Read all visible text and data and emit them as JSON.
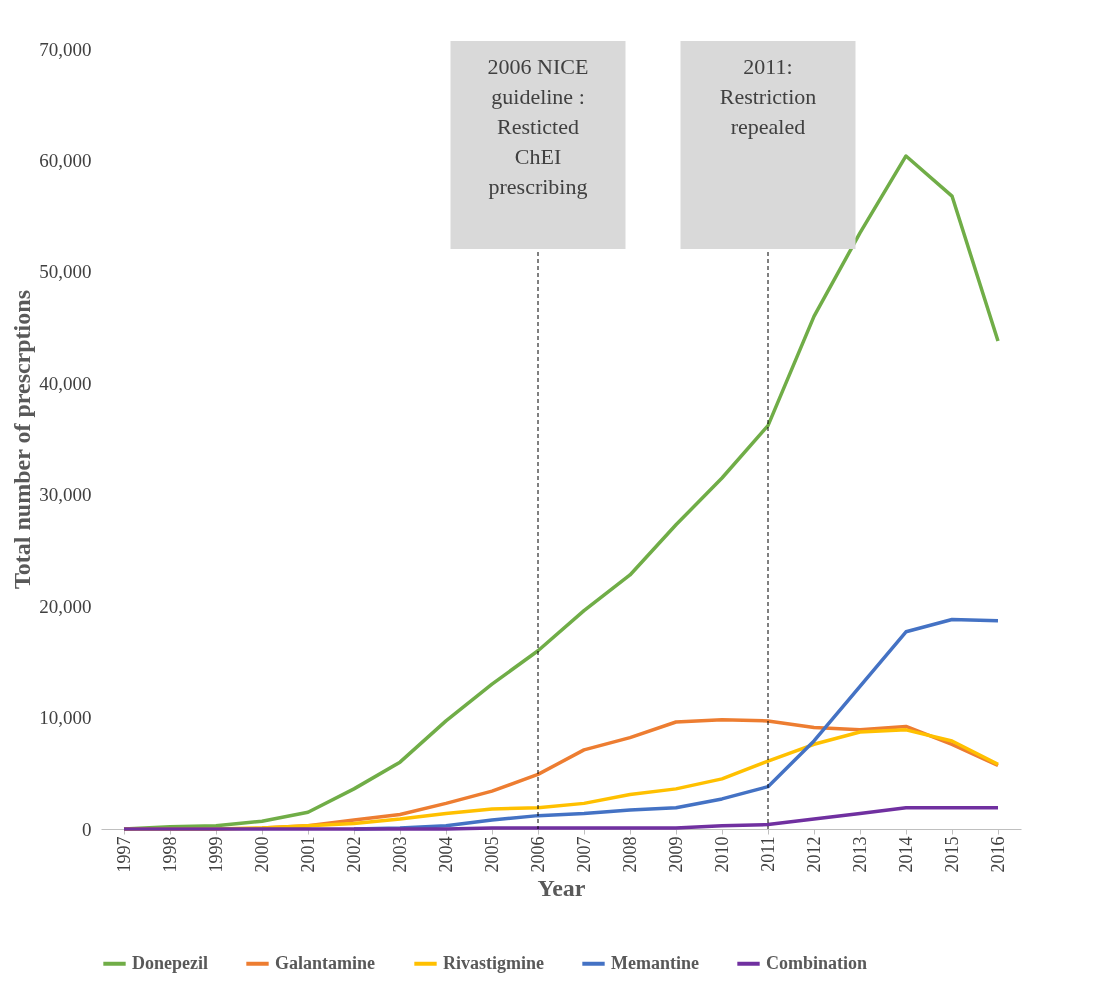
{
  "chart_data": {
    "type": "line",
    "xlabel": "Year",
    "ylabel": "Total number of prescrptions",
    "categories": [
      "1997",
      "1998",
      "1999",
      "2000",
      "2001",
      "2002",
      "2003",
      "2004",
      "2005",
      "2006",
      "2007",
      "2008",
      "2009",
      "2010",
      "2011",
      "2012",
      "2013",
      "2014",
      "2015",
      "2016"
    ],
    "series": [
      {
        "name": "Donepezil",
        "color": "#70ad47",
        "values": [
          0,
          200,
          300,
          700,
          1500,
          3600,
          6000,
          9700,
          13000,
          16000,
          19600,
          22800,
          27300,
          31500,
          36200,
          46000,
          53500,
          60400,
          56800,
          43800
        ]
      },
      {
        "name": "Galantamine",
        "color": "#ed7d31",
        "values": [
          null,
          null,
          null,
          100,
          300,
          800,
          1300,
          2300,
          3400,
          4900,
          7100,
          8200,
          9600,
          9800,
          9700,
          9100,
          8900,
          9200,
          7600,
          5700
        ]
      },
      {
        "name": "Rivastigmine",
        "color": "#ffc000",
        "values": [
          0,
          0,
          0,
          100,
          300,
          500,
          900,
          1400,
          1800,
          1900,
          2300,
          3100,
          3600,
          4500,
          6100,
          7600,
          8700,
          8900,
          7900,
          5800
        ]
      },
      {
        "name": "Memantine",
        "color": "#4472c4",
        "values": [
          null,
          null,
          null,
          null,
          null,
          0,
          100,
          300,
          800,
          1200,
          1400,
          1700,
          1900,
          2700,
          3800,
          7900,
          12800,
          17700,
          18800,
          18700
        ]
      },
      {
        "name": "Combination",
        "color": "#7030a0",
        "values": [
          0,
          0,
          0,
          0,
          0,
          0,
          0,
          0,
          100,
          100,
          100,
          100,
          100,
          300,
          400,
          900,
          1400,
          1900,
          1900,
          1900
        ]
      }
    ],
    "ylim": [
      0,
      70000
    ],
    "yticks": [
      0,
      {
        "value": 10000,
        "label": "10,000"
      },
      {
        "value": 20000,
        "label": "20,000"
      },
      {
        "value": 30000,
        "label": "30,000"
      },
      {
        "value": 40000,
        "label": "40,000"
      },
      {
        "value": 50000,
        "label": "50,000"
      },
      {
        "value": 60000,
        "label": "60,000"
      },
      {
        "value": 70000,
        "label": "70,000"
      }
    ],
    "grid": false,
    "legend": "bottom",
    "line_style": "solid",
    "ref_lines": [
      {
        "axis": "x",
        "value": "2006",
        "label": "2006 NICE\nguideline :\nResticted\nChEI\nprescribing",
        "color": "#000000",
        "line_style": "dashed"
      },
      {
        "axis": "x",
        "value": "2011",
        "label": "2011:\nRestriction\nrepealed",
        "color": "#000000",
        "line_style": "dashed"
      }
    ]
  }
}
